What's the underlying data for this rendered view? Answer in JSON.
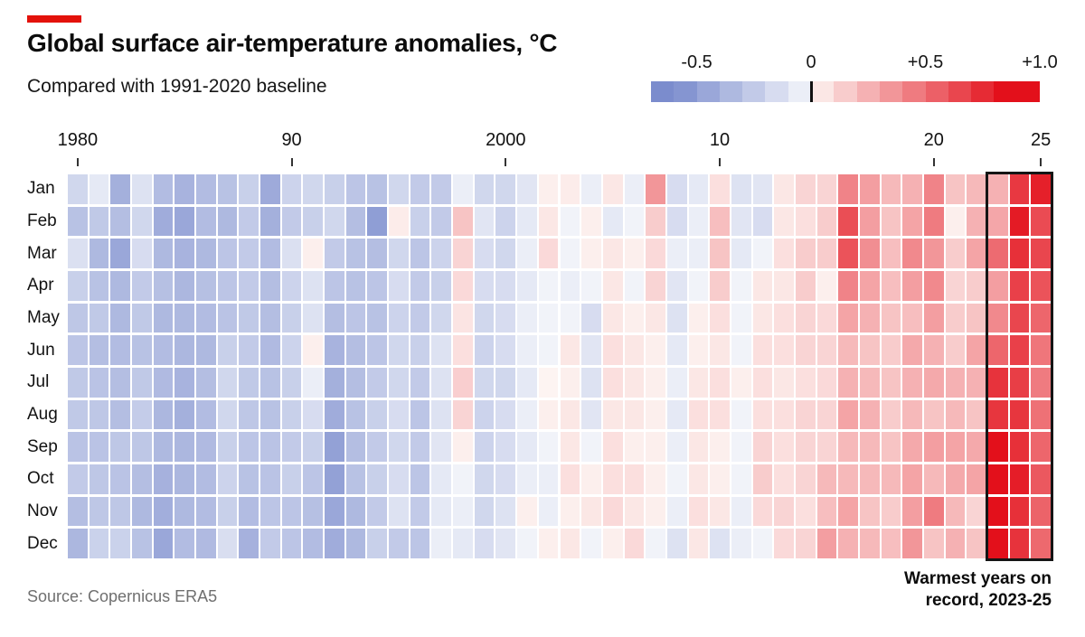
{
  "header": {
    "title": "Global surface air-temperature anomalies, °C",
    "subtitle": "Compared with 1991-2020 baseline"
  },
  "brand_tick_color": "#e3120b",
  "legend": {
    "domain": [
      -0.7,
      1.0
    ],
    "segment_step": 0.1,
    "labels": [
      {
        "text": "-0.5",
        "value": -0.5
      },
      {
        "text": "0",
        "value": 0
      },
      {
        "text": "+0.5",
        "value": 0.5
      },
      {
        "text": "+1.0",
        "value": 1.0
      }
    ]
  },
  "axis": {
    "year_ticks": [
      {
        "label": "1980",
        "year": 1980
      },
      {
        "label": "90",
        "year": 1990
      },
      {
        "label": "2000",
        "year": 2000
      },
      {
        "label": "10",
        "year": 2010
      },
      {
        "label": "20",
        "year": 2020
      },
      {
        "label": "25",
        "year": 2025
      }
    ]
  },
  "annotation": {
    "line1": "Warmest years on",
    "line2": "record, 2023-25",
    "box_year_start": 2023,
    "box_year_end": 2025
  },
  "source": "Source: Copernicus ERA5",
  "chart_data": {
    "type": "heatmap",
    "title": "Global surface air-temperature anomalies, °C",
    "subtitle": "Compared with 1991-2020 baseline",
    "unit": "°C anomaly vs 1991-2020 baseline",
    "rows": [
      "Jan",
      "Feb",
      "Mar",
      "Apr",
      "May",
      "Jun",
      "Jul",
      "Aug",
      "Sep",
      "Oct",
      "Nov",
      "Dec"
    ],
    "years": {
      "start": 1980,
      "end": 2025
    },
    "color_scale": {
      "neg_zero": "#f5f7fb",
      "neg_max": "#7b8ccd",
      "neg_saturation": 0.6,
      "pos_zero": "#fdf4f2",
      "pos_max": "#e3101b",
      "pos_saturation": 0.85
    },
    "values_by_year": [
      [
        -0.18,
        -0.3,
        -0.13,
        -0.22,
        -0.27,
        -0.28,
        -0.26,
        -0.26,
        -0.29,
        -0.25,
        -0.32,
        -0.36
      ],
      [
        -0.08,
        -0.26,
        -0.35,
        -0.3,
        -0.26,
        -0.32,
        -0.29,
        -0.27,
        -0.29,
        -0.27,
        -0.27,
        -0.21
      ],
      [
        -0.4,
        -0.32,
        -0.45,
        -0.35,
        -0.35,
        -0.33,
        -0.32,
        -0.32,
        -0.27,
        -0.29,
        -0.27,
        -0.21
      ],
      [
        -0.12,
        -0.18,
        -0.15,
        -0.25,
        -0.26,
        -0.3,
        -0.26,
        -0.24,
        -0.27,
        -0.32,
        -0.35,
        -0.3
      ],
      [
        -0.33,
        -0.42,
        -0.35,
        -0.31,
        -0.35,
        -0.33,
        -0.34,
        -0.36,
        -0.35,
        -0.39,
        -0.41,
        -0.45
      ],
      [
        -0.38,
        -0.45,
        -0.38,
        -0.36,
        -0.35,
        -0.36,
        -0.38,
        -0.4,
        -0.36,
        -0.36,
        -0.35,
        -0.33
      ],
      [
        -0.33,
        -0.33,
        -0.35,
        -0.31,
        -0.33,
        -0.35,
        -0.32,
        -0.33,
        -0.34,
        -0.33,
        -0.33,
        -0.34
      ],
      [
        -0.3,
        -0.35,
        -0.28,
        -0.28,
        -0.29,
        -0.22,
        -0.18,
        -0.18,
        -0.22,
        -0.2,
        -0.22,
        -0.14
      ],
      [
        -0.22,
        -0.25,
        -0.25,
        -0.25,
        -0.26,
        -0.25,
        -0.26,
        -0.27,
        -0.28,
        -0.3,
        -0.33,
        -0.39
      ],
      [
        -0.43,
        -0.4,
        -0.33,
        -0.32,
        -0.32,
        -0.34,
        -0.3,
        -0.3,
        -0.29,
        -0.29,
        -0.28,
        -0.25
      ],
      [
        -0.2,
        -0.25,
        -0.13,
        -0.2,
        -0.22,
        -0.2,
        -0.22,
        -0.22,
        -0.25,
        -0.22,
        -0.28,
        -0.28
      ],
      [
        -0.18,
        -0.22,
        0.02,
        -0.12,
        -0.12,
        0.02,
        -0.05,
        -0.15,
        -0.22,
        -0.28,
        -0.31,
        -0.33
      ],
      [
        -0.22,
        -0.18,
        -0.25,
        -0.28,
        -0.32,
        -0.38,
        -0.4,
        -0.42,
        -0.48,
        -0.48,
        -0.45,
        -0.42
      ],
      [
        -0.28,
        -0.32,
        -0.3,
        -0.3,
        -0.28,
        -0.32,
        -0.32,
        -0.3,
        -0.32,
        -0.3,
        -0.35,
        -0.35
      ],
      [
        -0.3,
        -0.5,
        -0.32,
        -0.28,
        -0.3,
        -0.28,
        -0.25,
        -0.22,
        -0.25,
        -0.22,
        -0.25,
        -0.22
      ],
      [
        -0.18,
        0.03,
        -0.18,
        -0.15,
        -0.2,
        -0.18,
        -0.18,
        -0.15,
        -0.18,
        -0.15,
        -0.12,
        -0.25
      ],
      [
        -0.25,
        -0.22,
        -0.28,
        -0.25,
        -0.25,
        -0.22,
        -0.25,
        -0.28,
        -0.25,
        -0.28,
        -0.25,
        -0.28
      ],
      [
        -0.25,
        -0.25,
        -0.2,
        -0.22,
        -0.18,
        -0.12,
        -0.12,
        -0.12,
        -0.1,
        -0.08,
        -0.08,
        -0.05
      ],
      [
        -0.05,
        0.18,
        0.12,
        0.1,
        0.06,
        0.08,
        0.14,
        0.12,
        0.02,
        -0.02,
        -0.05,
        -0.08
      ],
      [
        -0.18,
        -0.1,
        -0.15,
        -0.15,
        -0.18,
        -0.2,
        -0.18,
        -0.2,
        -0.2,
        -0.18,
        -0.18,
        -0.15
      ],
      [
        -0.18,
        -0.2,
        -0.18,
        -0.15,
        -0.15,
        -0.15,
        -0.18,
        -0.15,
        -0.15,
        -0.15,
        -0.12,
        -0.1
      ],
      [
        -0.1,
        -0.08,
        -0.05,
        -0.08,
        -0.05,
        -0.05,
        -0.08,
        -0.05,
        -0.08,
        -0.05,
        0.02,
        -0.02
      ],
      [
        0.02,
        0.05,
        0.1,
        -0.02,
        -0.02,
        -0.02,
        0.0,
        0.02,
        -0.02,
        -0.05,
        -0.05,
        0.02
      ],
      [
        0.03,
        -0.02,
        -0.02,
        -0.05,
        -0.02,
        0.05,
        0.02,
        0.05,
        0.05,
        0.08,
        0.02,
        0.05
      ],
      [
        -0.05,
        0.02,
        0.02,
        -0.02,
        -0.15,
        -0.1,
        -0.12,
        -0.1,
        -0.02,
        0.02,
        0.05,
        -0.02
      ],
      [
        0.05,
        -0.08,
        0.05,
        0.05,
        0.05,
        0.08,
        0.08,
        0.05,
        0.08,
        0.08,
        0.1,
        0.02
      ],
      [
        -0.05,
        -0.02,
        0.02,
        -0.02,
        0.02,
        0.05,
        0.05,
        0.05,
        0.02,
        0.08,
        0.05,
        0.1
      ],
      [
        0.35,
        0.15,
        0.1,
        0.12,
        0.05,
        0.02,
        0.02,
        0.02,
        0.02,
        0.02,
        0.02,
        -0.02
      ],
      [
        -0.15,
        -0.15,
        -0.05,
        -0.1,
        -0.12,
        -0.08,
        -0.05,
        -0.08,
        -0.05,
        -0.02,
        -0.05,
        -0.12
      ],
      [
        -0.08,
        -0.05,
        -0.05,
        -0.02,
        0.02,
        0.02,
        0.05,
        0.08,
        0.05,
        0.05,
        0.08,
        0.05
      ],
      [
        0.08,
        0.2,
        0.18,
        0.15,
        0.08,
        0.05,
        0.08,
        0.08,
        0.02,
        0.02,
        0.05,
        -0.12
      ],
      [
        -0.12,
        -0.1,
        -0.08,
        -0.02,
        -0.02,
        -0.02,
        0.02,
        -0.02,
        -0.02,
        -0.02,
        -0.05,
        -0.05
      ],
      [
        -0.1,
        -0.15,
        -0.02,
        0.05,
        0.05,
        0.08,
        0.08,
        0.08,
        0.12,
        0.15,
        0.1,
        -0.02
      ],
      [
        0.05,
        0.05,
        0.08,
        0.05,
        0.08,
        0.08,
        0.05,
        0.08,
        0.08,
        0.08,
        0.12,
        0.1
      ],
      [
        0.12,
        0.08,
        0.15,
        0.15,
        0.12,
        0.12,
        0.08,
        0.12,
        0.12,
        0.12,
        0.08,
        0.12
      ],
      [
        0.12,
        0.15,
        0.15,
        0.02,
        0.1,
        0.12,
        0.1,
        0.12,
        0.12,
        0.22,
        0.2,
        0.32
      ],
      [
        0.42,
        0.62,
        0.6,
        0.42,
        0.3,
        0.22,
        0.25,
        0.3,
        0.22,
        0.22,
        0.3,
        0.25
      ],
      [
        0.32,
        0.32,
        0.38,
        0.3,
        0.25,
        0.18,
        0.22,
        0.25,
        0.22,
        0.22,
        0.18,
        0.22
      ],
      [
        0.22,
        0.18,
        0.2,
        0.2,
        0.18,
        0.15,
        0.18,
        0.15,
        0.18,
        0.22,
        0.15,
        0.2
      ],
      [
        0.25,
        0.3,
        0.4,
        0.32,
        0.2,
        0.28,
        0.25,
        0.22,
        0.28,
        0.3,
        0.32,
        0.35
      ],
      [
        0.42,
        0.45,
        0.35,
        0.4,
        0.32,
        0.25,
        0.28,
        0.18,
        0.32,
        0.22,
        0.45,
        0.18
      ],
      [
        0.18,
        0.02,
        0.15,
        0.12,
        0.15,
        0.15,
        0.25,
        0.22,
        0.3,
        0.28,
        0.22,
        0.25
      ],
      [
        0.22,
        0.25,
        0.3,
        0.15,
        0.18,
        0.3,
        0.25,
        0.18,
        0.28,
        0.3,
        0.12,
        0.18
      ],
      [
        0.25,
        0.29,
        0.51,
        0.32,
        0.4,
        0.53,
        0.72,
        0.71,
        0.93,
        0.85,
        0.85,
        0.85
      ],
      [
        0.7,
        0.81,
        0.73,
        0.67,
        0.65,
        0.67,
        0.68,
        0.71,
        0.73,
        0.8,
        0.73,
        0.72
      ],
      [
        0.79,
        0.63,
        0.65,
        0.6,
        0.53,
        0.47,
        0.45,
        0.49,
        0.53,
        0.58,
        0.54,
        0.52
      ]
    ]
  }
}
